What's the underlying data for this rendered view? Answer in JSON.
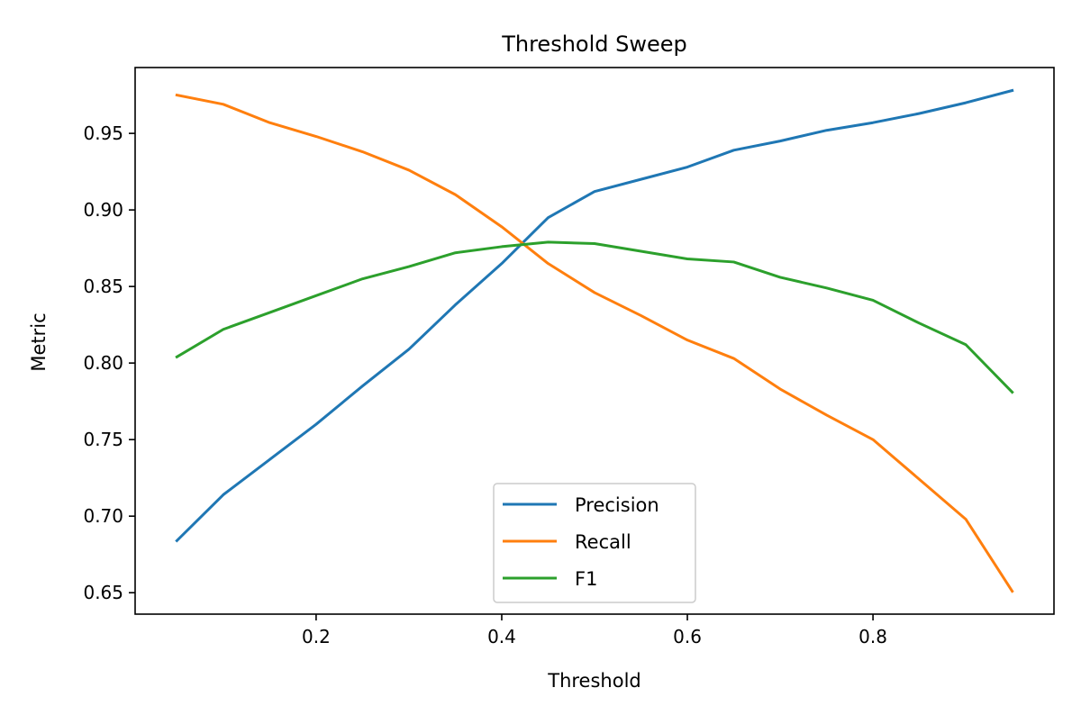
{
  "chart_data": {
    "type": "line",
    "title": "Threshold Sweep",
    "xlabel": "Threshold",
    "ylabel": "Metric",
    "xlim": [
      0.005,
      0.995
    ],
    "ylim": [
      0.636,
      0.993
    ],
    "xticks": [
      0.2,
      0.4,
      0.6,
      0.8
    ],
    "xtick_labels": [
      "0.2",
      "0.4",
      "0.6",
      "0.8"
    ],
    "yticks": [
      0.65,
      0.7,
      0.75,
      0.8,
      0.85,
      0.9,
      0.95
    ],
    "ytick_labels": [
      "0.65",
      "0.70",
      "0.75",
      "0.80",
      "0.85",
      "0.90",
      "0.95"
    ],
    "grid": false,
    "legend_position": "lower-center",
    "x": [
      0.05,
      0.1,
      0.15,
      0.2,
      0.25,
      0.3,
      0.35,
      0.4,
      0.45,
      0.5,
      0.55,
      0.6,
      0.65,
      0.7,
      0.75,
      0.8,
      0.85,
      0.9,
      0.95
    ],
    "series": [
      {
        "name": "Precision",
        "color": "#1f77b4",
        "values": [
          0.684,
          0.714,
          0.737,
          0.76,
          0.785,
          0.809,
          0.838,
          0.865,
          0.895,
          0.912,
          0.92,
          0.928,
          0.939,
          0.945,
          0.952,
          0.957,
          0.963,
          0.97,
          0.978
        ]
      },
      {
        "name": "Recall",
        "color": "#ff7f0e",
        "values": [
          0.975,
          0.969,
          0.957,
          0.948,
          0.938,
          0.926,
          0.91,
          0.889,
          0.865,
          0.846,
          0.831,
          0.815,
          0.803,
          0.783,
          0.766,
          0.75,
          0.724,
          0.698,
          0.651
        ]
      },
      {
        "name": "F1",
        "color": "#2ca02c",
        "values": [
          0.804,
          0.822,
          0.833,
          0.844,
          0.855,
          0.863,
          0.872,
          0.876,
          0.879,
          0.878,
          0.873,
          0.868,
          0.866,
          0.856,
          0.849,
          0.841,
          0.826,
          0.812,
          0.781
        ]
      }
    ]
  }
}
